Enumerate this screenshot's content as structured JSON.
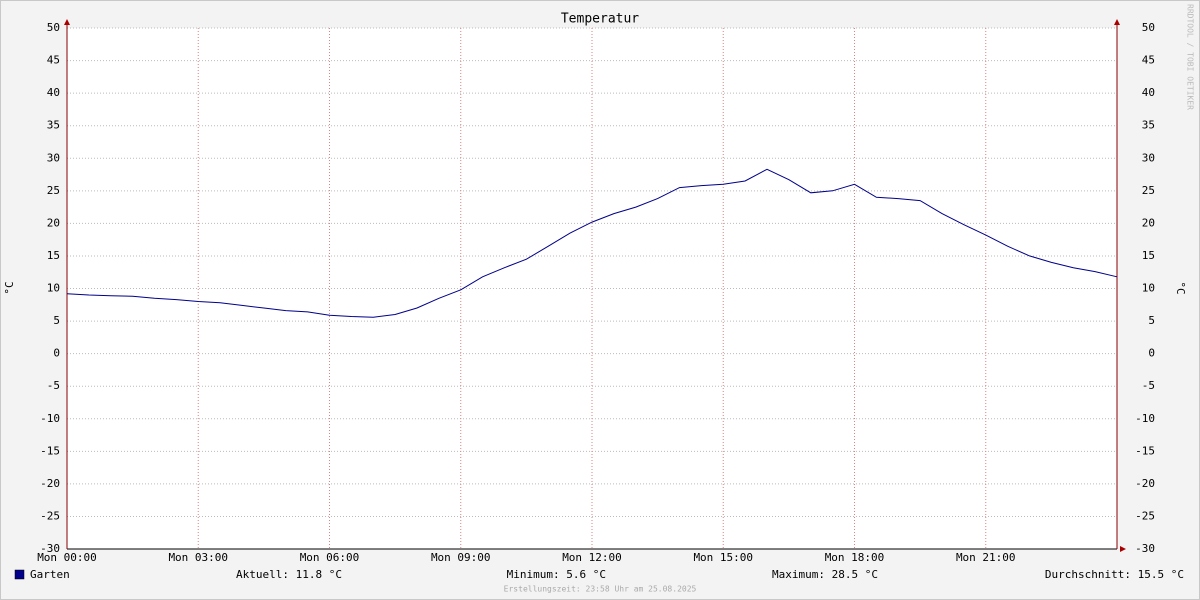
{
  "chart_data": {
    "type": "line",
    "title": "Temperatur",
    "y_label": "°C",
    "y2_label": "°C",
    "watermark": "RRDTOOL / TOBI OETIKER",
    "footer": "Erstellungszeit: 23:58 Uhr am 25.08.2025",
    "x": [
      0,
      0.5,
      1,
      1.5,
      2,
      2.5,
      3,
      3.5,
      4,
      4.5,
      5,
      5.5,
      6,
      6.5,
      7,
      7.5,
      8,
      8.5,
      9,
      9.5,
      10,
      10.5,
      11,
      11.5,
      12,
      12.5,
      13,
      13.5,
      14,
      14.5,
      15,
      15.5,
      16,
      16.5,
      17,
      17.5,
      18,
      18.5,
      19,
      19.5,
      20,
      20.5,
      21,
      21.5,
      22,
      22.5,
      23,
      23.5,
      24
    ],
    "series": [
      {
        "name": "Garten",
        "color": "#00008b",
        "values": [
          9.2,
          9.0,
          8.9,
          8.8,
          8.5,
          8.3,
          8.0,
          7.8,
          7.4,
          7.0,
          6.6,
          6.4,
          5.9,
          5.7,
          5.6,
          6.0,
          7.0,
          8.5,
          9.8,
          11.8,
          13.2,
          14.5,
          16.5,
          18.5,
          20.2,
          21.5,
          22.5,
          23.8,
          25.5,
          25.8,
          26.0,
          26.5,
          28.3,
          26.7,
          24.7,
          25.0,
          26.0,
          24.0,
          23.8,
          23.5,
          21.5,
          19.8,
          18.2,
          16.5,
          15.0,
          14.0,
          13.2,
          12.6,
          11.8
        ]
      }
    ],
    "xlim": [
      0,
      24
    ],
    "xticks": [
      {
        "value": 0,
        "label": "Mon 00:00"
      },
      {
        "value": 3,
        "label": "Mon 03:00"
      },
      {
        "value": 6,
        "label": "Mon 06:00"
      },
      {
        "value": 9,
        "label": "Mon 09:00"
      },
      {
        "value": 12,
        "label": "Mon 12:00"
      },
      {
        "value": 15,
        "label": "Mon 15:00"
      },
      {
        "value": 18,
        "label": "Mon 18:00"
      },
      {
        "value": 21,
        "label": "Mon 21:00"
      }
    ],
    "ylim": [
      -30,
      50
    ],
    "yticks": [
      -30,
      -25,
      -20,
      -15,
      -10,
      -5,
      0,
      5,
      10,
      15,
      20,
      25,
      30,
      35,
      40,
      45,
      50
    ],
    "grid": true,
    "stats": [
      {
        "label": "Aktuell:",
        "value": 11.8,
        "unit": "°C"
      },
      {
        "label": "Minimum:",
        "value": 5.6,
        "unit": "°C"
      },
      {
        "label": "Maximum:",
        "value": 28.5,
        "unit": "°C"
      },
      {
        "label": "Durchschnitt:",
        "value": 15.5,
        "unit": "°C"
      }
    ]
  }
}
